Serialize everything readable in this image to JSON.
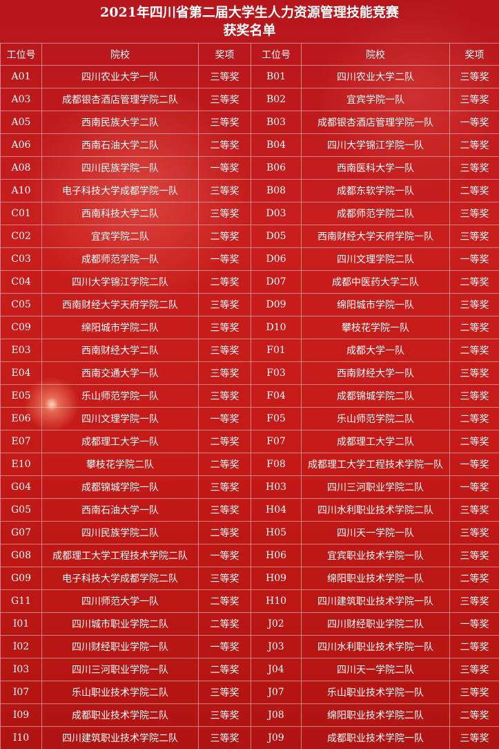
{
  "header": {
    "title": [
      "2021年四川省第二届大学生人力资源管理技能竞赛",
      "获奖名单"
    ]
  },
  "table": {
    "columns": [
      "工位号",
      "院校",
      "奖项",
      "工位号",
      "院校",
      "奖项"
    ],
    "rows": [
      [
        "A01",
        "四川农业大学一队",
        "三等奖",
        "B01",
        "四川农业大学二队",
        "三等奖"
      ],
      [
        "A03",
        "成都银杏酒店管理学院二队",
        "三等奖",
        "B02",
        "宜宾学院一队",
        "三等奖"
      ],
      [
        "A05",
        "西南民族大学二队",
        "三等奖",
        "B03",
        "成都银杏酒店管理学院一队",
        "一等奖"
      ],
      [
        "A06",
        "西南石油大学二队",
        "二等奖",
        "B04",
        "四川大学锦江学院一队",
        "二等奖"
      ],
      [
        "A08",
        "四川民族学院一队",
        "一等奖",
        "B06",
        "西南医科大学一队",
        "三等奖"
      ],
      [
        "A10",
        "电子科技大学成都学院一队",
        "三等奖",
        "B08",
        "成都东软学院一队",
        "二等奖"
      ],
      [
        "C01",
        "西南科技大学二队",
        "三等奖",
        "D03",
        "成都师范学院二队",
        "三等奖"
      ],
      [
        "C02",
        "宜宾学院二队",
        "二等奖",
        "D05",
        "西南财经大学天府学院一队",
        "三等奖"
      ],
      [
        "C03",
        "成都师范学院一队",
        "一等奖",
        "D06",
        "四川文理学院二队",
        "一等奖"
      ],
      [
        "C04",
        "四川大学锦江学院二队",
        "二等奖",
        "D07",
        "成都中医药大学二队",
        "二等奖"
      ],
      [
        "C05",
        "西南财经大学天府学院二队",
        "三等奖",
        "D09",
        "绵阳城市学院一队",
        "三等奖"
      ],
      [
        "C09",
        "绵阳城市学院二队",
        "三等奖",
        "D10",
        "攀枝花学院一队",
        "二等奖"
      ],
      [
        "E03",
        "西南财经大学二队",
        "三等奖",
        "F01",
        "成都大学一队",
        "二等奖"
      ],
      [
        "E04",
        "西南交通大学一队",
        "三等奖",
        "F03",
        "西南财经大学一队",
        "三等奖"
      ],
      [
        "E05",
        "乐山师范学院一队",
        "三等奖",
        "F04",
        "成都锦城学院二队",
        "三等奖"
      ],
      [
        "E06",
        "四川文理学院一队",
        "一等奖",
        "F05",
        "乐山师范学院二队",
        "二等奖"
      ],
      [
        "E07",
        "成都理工大学一队",
        "二等奖",
        "F07",
        "成都理工大学二队",
        "二等奖"
      ],
      [
        "E10",
        "攀枝花学院二队",
        "二等奖",
        "F08",
        "成都理工大学工程技术学院一队",
        "一等奖"
      ],
      [
        "G04",
        "成都锦城学院一队",
        "三等奖",
        "H03",
        "四川三河职业学院二队",
        "一等奖"
      ],
      [
        "G05",
        "西南石油大学一队",
        "三等奖",
        "H04",
        "四川水利职业技术学院二队",
        "三等奖"
      ],
      [
        "G07",
        "四川民族学院二队",
        "二等奖",
        "H05",
        "四川天一学院一队",
        "三等奖"
      ],
      [
        "G08",
        "成都理工大学工程技术学院二队",
        "一等奖",
        "H06",
        "宜宾职业技术学院一队",
        "三等奖"
      ],
      [
        "G09",
        "电子科技大学成都学院二队",
        "三等奖",
        "H09",
        "绵阳职业技术学院一队",
        "二等奖"
      ],
      [
        "G11",
        "四川师范大学一队",
        "二等奖",
        "H10",
        "四川建筑职业技术学院一队",
        "三等奖"
      ],
      [
        "I01",
        "四川城市职业学院二队",
        "二等奖",
        "J02",
        "四川财经职业学院二队",
        "一等奖"
      ],
      [
        "I02",
        "四川财经职业学院一队",
        "一等奖",
        "J03",
        "四川水利职业技术学院一队",
        "二等奖"
      ],
      [
        "I03",
        "四川三河职业学院一队",
        "二等奖",
        "J04",
        "四川天一学院二队",
        "三等奖"
      ],
      [
        "I07",
        "乐山职业技术学院二队",
        "三等奖",
        "J07",
        "乐山职业技术学院一队",
        "三等奖"
      ],
      [
        "I09",
        "成都职业技术学院二队",
        "三等奖",
        "J08",
        "绵阳职业技术学院二队",
        "二等奖"
      ],
      [
        "I10",
        "四川建筑职业技术学院二队",
        "三等奖",
        "J09",
        "成都职业技术学院一队",
        "三等奖"
      ]
    ]
  }
}
